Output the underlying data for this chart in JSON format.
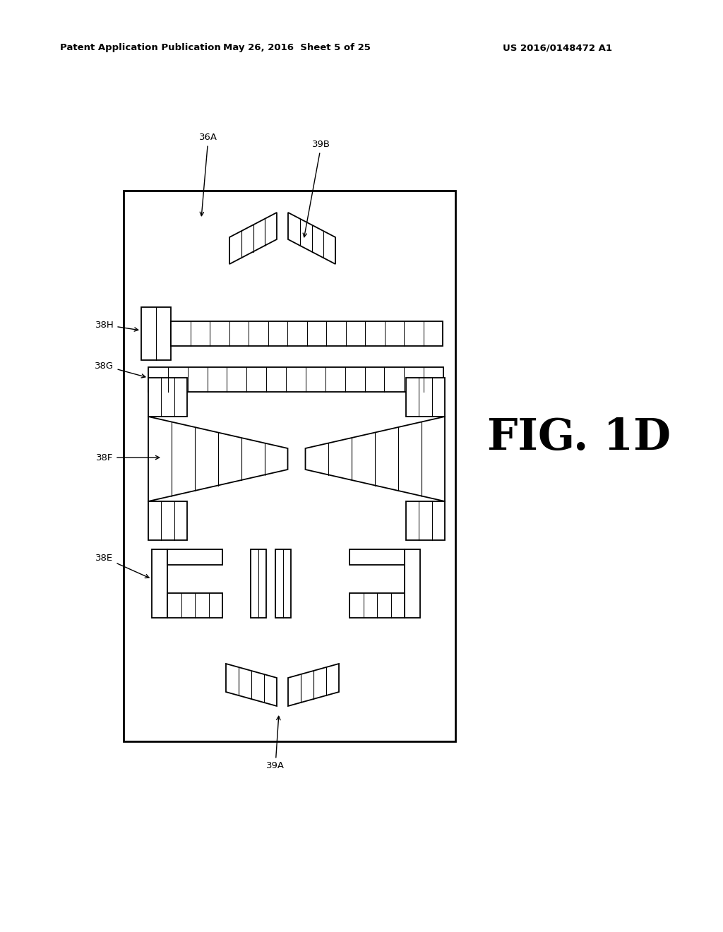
{
  "bg_color": "#ffffff",
  "fig_label": "FIG. 1D",
  "header_left": "Patent Application Publication",
  "header_mid": "May 26, 2016  Sheet 5 of 25",
  "header_right": "US 2016/0148472 A1"
}
